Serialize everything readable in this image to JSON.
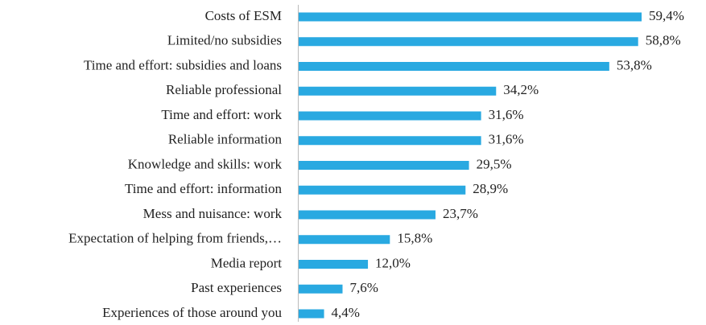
{
  "chart_data": {
    "type": "bar",
    "orientation": "horizontal",
    "color": "#29a9e1",
    "categories": [
      "Costs of ESM",
      "Limited/no subsidies",
      "Time and effort: subsidies and loans",
      "Reliable professional",
      "Time and effort: work",
      "Reliable information",
      "Knowledge and skills: work",
      "Time and effort: information",
      "Mess and nuisance: work",
      "Expectation of helping from friends,…",
      "Media report",
      "Past experiences",
      "Experiences of those around you"
    ],
    "values": [
      59.4,
      58.8,
      53.8,
      34.2,
      31.6,
      31.6,
      29.5,
      28.9,
      23.7,
      15.8,
      12.0,
      7.6,
      4.4
    ],
    "value_labels": [
      "59,4%",
      "58,8%",
      "53,8%",
      "34,2%",
      "31,6%",
      "31,6%",
      "29,5%",
      "28,9%",
      "23,7%",
      "15,8%",
      "12,0%",
      "7,6%",
      "4,4%"
    ]
  }
}
